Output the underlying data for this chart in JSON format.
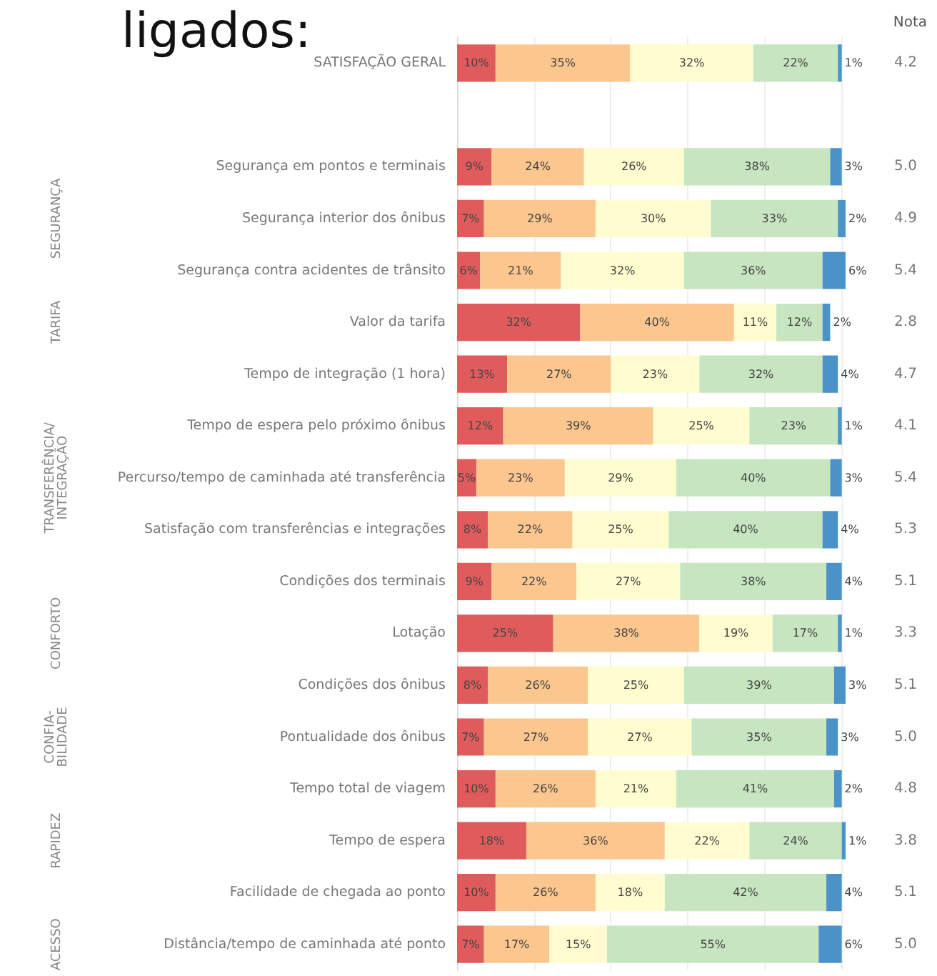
{
  "chart_data": [
    {
      "type": "bar",
      "orientation": "horizontal",
      "stacked": true,
      "title": "ligados:",
      "categories": [
        "SATISFAÇÃO GERAL",
        null,
        "Segurança em pontos e terminais",
        "Segurança interior dos ônibus",
        "Segurança contra acidentes de trânsito",
        "Valor da tarifa",
        "Tempo de integração (1 hora)",
        "Tempo de espera pelo próximo ônibus",
        "Percurso/tempo de caminhada até transferência",
        "Satisfação com transferências e integrações",
        "Condições dos terminais",
        "Lotação",
        "Condições dos ônibus",
        "Pontualidade dos ônibus",
        "Tempo total de viagem",
        "Tempo de espera",
        "Facilidade de chegada ao ponto",
        "Distância/tempo de caminhada até ponto"
      ],
      "series": [
        {
          "color": "#e05c5c",
          "values": [
            10,
            null,
            9,
            7,
            6,
            32,
            13,
            12,
            5,
            8,
            9,
            25,
            8,
            7,
            10,
            18,
            10,
            7
          ],
          "value_labels": [
            "10%",
            null,
            "9%",
            "7%",
            "6%",
            "32%",
            "13%",
            "12%",
            "5%",
            "8%",
            "9%",
            "25%",
            "8%",
            "7%",
            "10%",
            "18%",
            "10%",
            "7%"
          ]
        },
        {
          "color": "#fcc68f",
          "values": [
            35,
            null,
            24,
            29,
            21,
            40,
            27,
            39,
            23,
            22,
            22,
            38,
            26,
            27,
            26,
            36,
            26,
            17
          ],
          "value_labels": [
            "35%",
            null,
            "24%",
            "29%",
            "21%",
            "40%",
            "27%",
            "39%",
            "23%",
            "22%",
            "22%",
            "38%",
            "26%",
            "27%",
            "26%",
            "36%",
            "26%",
            "17%"
          ]
        },
        {
          "color": "#fffdd0",
          "values": [
            32,
            null,
            26,
            30,
            32,
            11,
            23,
            25,
            29,
            25,
            27,
            19,
            25,
            27,
            21,
            22,
            18,
            15
          ],
          "value_labels": [
            "32%",
            null,
            "26%",
            "30%",
            "32%",
            "11%",
            "23%",
            "25%",
            "29%",
            "25%",
            "27%",
            "19%",
            "25%",
            "27%",
            "21%",
            "22%",
            "18%",
            "15%"
          ]
        },
        {
          "color": "#c6e5c0",
          "values": [
            22,
            null,
            38,
            33,
            36,
            12,
            32,
            23,
            40,
            40,
            38,
            17,
            39,
            35,
            41,
            24,
            42,
            55
          ],
          "value_labels": [
            "22%",
            null,
            "38%",
            "33%",
            "36%",
            "12%",
            "32%",
            "23%",
            "40%",
            "40%",
            "38%",
            "17%",
            "39%",
            "35%",
            "41%",
            "24%",
            "42%",
            "55%"
          ]
        },
        {
          "color": "#4b92c9",
          "values": [
            1,
            null,
            3,
            2,
            6,
            2,
            4,
            1,
            3,
            4,
            4,
            1,
            3,
            3,
            2,
            1,
            4,
            6
          ],
          "value_labels": [
            "1%",
            null,
            "3%",
            "2%",
            "6%",
            "2%",
            "4%",
            "1%",
            "3%",
            "4%",
            "4%",
            "1%",
            "3%",
            "3%",
            "2%",
            "1%",
            "4%",
            "6%"
          ]
        }
      ],
      "xlim": [
        0,
        101
      ],
      "xticks": [
        {
          "value": 0,
          "label": null
        },
        {
          "value": 20,
          "label": null
        },
        {
          "value": 40,
          "label": null
        },
        {
          "value": 60,
          "label": null
        },
        {
          "value": 80,
          "label": null
        },
        {
          "value": 100,
          "label": null
        }
      ],
      "tick_labels": "y",
      "grid": "x",
      "annotations": [
        "SEGURANÇA",
        "TARIFA",
        "TRANSFERÊNCIA/ INTEGRAÇÃO",
        "CONFORTO",
        "CONFIA- BILIDADE",
        "RAPIDEZ",
        "ACESSO"
      ]
    },
    {
      "type": "other",
      "title": "Nota",
      "values": [
        4.2,
        null,
        5.0,
        4.9,
        5.4,
        2.8,
        4.7,
        4.1,
        5.4,
        5.3,
        5.1,
        3.3,
        5.1,
        5.0,
        4.8,
        3.8,
        5.1,
        5.0
      ],
      "value_labels": [
        "4.2",
        null,
        "5.0",
        "4.9",
        "5.4",
        "2.8",
        "4.7",
        "4.1",
        "5.4",
        "5.3",
        "5.1",
        "3.3",
        "5.1",
        "5.0",
        "4.8",
        "3.8",
        "5.1",
        "5.0"
      ]
    }
  ]
}
